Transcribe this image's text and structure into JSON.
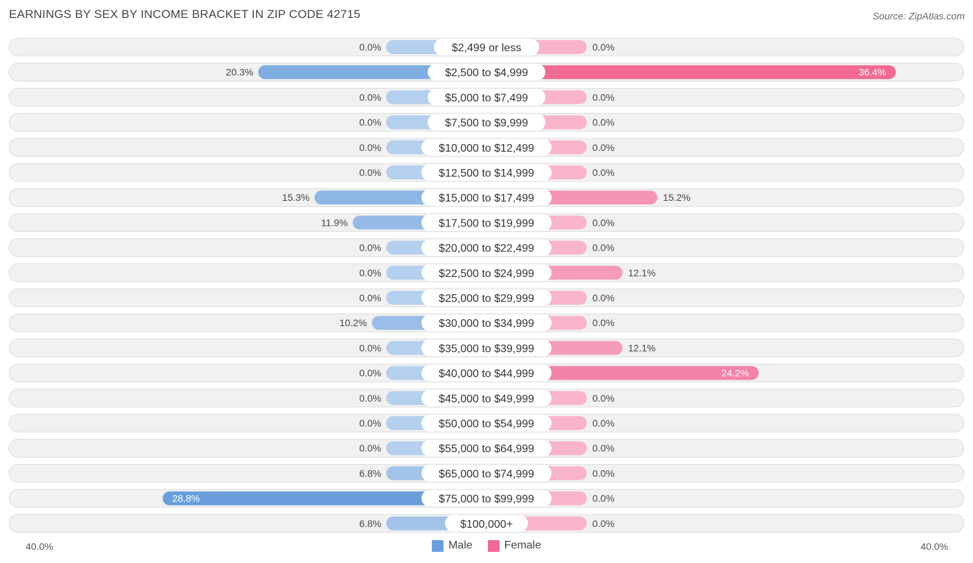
{
  "chart_data": {
    "type": "bar",
    "orientation": "horizontal-diverging",
    "title": "EARNINGS BY SEX BY INCOME BRACKET IN ZIP CODE 42715",
    "source": "Source: ZipAtlas.com",
    "categories": [
      "$2,499 or less",
      "$2,500 to $4,999",
      "$5,000 to $7,499",
      "$7,500 to $9,999",
      "$10,000 to $12,499",
      "$12,500 to $14,999",
      "$15,000 to $17,499",
      "$17,500 to $19,999",
      "$20,000 to $22,499",
      "$22,500 to $24,999",
      "$25,000 to $29,999",
      "$30,000 to $34,999",
      "$35,000 to $39,999",
      "$40,000 to $44,999",
      "$45,000 to $49,999",
      "$50,000 to $54,999",
      "$55,000 to $64,999",
      "$65,000 to $74,999",
      "$75,000 to $99,999",
      "$100,000+"
    ],
    "series": [
      {
        "name": "Male",
        "color": "#6a9fdc",
        "values": [
          0.0,
          20.3,
          0.0,
          0.0,
          0.0,
          0.0,
          15.3,
          11.9,
          0.0,
          0.0,
          0.0,
          10.2,
          0.0,
          0.0,
          0.0,
          0.0,
          0.0,
          6.8,
          28.8,
          6.8
        ],
        "labels": [
          "0.0%",
          "20.3%",
          "0.0%",
          "0.0%",
          "0.0%",
          "0.0%",
          "15.3%",
          "11.9%",
          "0.0%",
          "0.0%",
          "0.0%",
          "10.2%",
          "0.0%",
          "0.0%",
          "0.0%",
          "0.0%",
          "0.0%",
          "6.8%",
          "28.8%",
          "6.8%"
        ]
      },
      {
        "name": "Female",
        "color": "#f06a94",
        "values": [
          0.0,
          36.4,
          0.0,
          0.0,
          0.0,
          0.0,
          15.2,
          0.0,
          0.0,
          12.1,
          0.0,
          0.0,
          12.1,
          24.2,
          0.0,
          0.0,
          0.0,
          0.0,
          0.0,
          0.0
        ],
        "labels": [
          "0.0%",
          "36.4%",
          "0.0%",
          "0.0%",
          "0.0%",
          "0.0%",
          "15.2%",
          "0.0%",
          "0.0%",
          "12.1%",
          "0.0%",
          "0.0%",
          "12.1%",
          "24.2%",
          "0.0%",
          "0.0%",
          "0.0%",
          "0.0%",
          "0.0%",
          "0.0%"
        ]
      }
    ],
    "xlim": [
      -40,
      40
    ],
    "axis_min_label": "40.0%",
    "axis_max_label": "40.0%",
    "legend": [
      "Male",
      "Female"
    ]
  }
}
